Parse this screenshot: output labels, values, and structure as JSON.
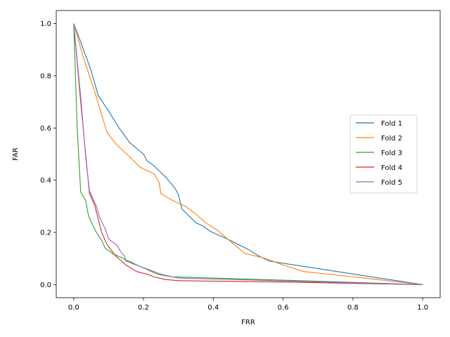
{
  "chart_data": {
    "type": "line",
    "xlabel": "FRR",
    "ylabel": "FAR",
    "xlim": [
      -0.05,
      1.05
    ],
    "ylim": [
      -0.05,
      1.05
    ],
    "xticks": [
      0.0,
      0.2,
      0.4,
      0.6,
      0.8,
      1.0
    ],
    "yticks": [
      0.0,
      0.2,
      0.4,
      0.6,
      0.8,
      1.0
    ],
    "xtick_labels": [
      "0.0",
      "0.2",
      "0.4",
      "0.6",
      "0.8",
      "1.0"
    ],
    "ytick_labels": [
      "0.0",
      "0.2",
      "0.4",
      "0.6",
      "0.8",
      "1.0"
    ],
    "grid": false,
    "legend_position": "center-right",
    "series": [
      {
        "name": "Fold 1",
        "color": "#1f77b4",
        "points": [
          [
            0.0,
            1.0
          ],
          [
            0.02,
            0.93
          ],
          [
            0.05,
            0.82
          ],
          [
            0.07,
            0.725
          ],
          [
            0.1,
            0.665
          ],
          [
            0.13,
            0.6
          ],
          [
            0.16,
            0.545
          ],
          [
            0.2,
            0.5
          ],
          [
            0.21,
            0.475
          ],
          [
            0.23,
            0.455
          ],
          [
            0.265,
            0.41
          ],
          [
            0.29,
            0.37
          ],
          [
            0.3,
            0.345
          ],
          [
            0.31,
            0.29
          ],
          [
            0.35,
            0.237
          ],
          [
            0.37,
            0.225
          ],
          [
            0.39,
            0.205
          ],
          [
            0.44,
            0.175
          ],
          [
            0.5,
            0.135
          ],
          [
            0.53,
            0.11
          ],
          [
            0.56,
            0.09
          ],
          [
            1.0,
            0.0
          ]
        ]
      },
      {
        "name": "Fold 2",
        "color": "#ff7f0e",
        "points": [
          [
            0.0,
            1.0
          ],
          [
            0.03,
            0.86
          ],
          [
            0.06,
            0.74
          ],
          [
            0.095,
            0.585
          ],
          [
            0.12,
            0.54
          ],
          [
            0.16,
            0.49
          ],
          [
            0.19,
            0.45
          ],
          [
            0.23,
            0.425
          ],
          [
            0.245,
            0.39
          ],
          [
            0.25,
            0.348
          ],
          [
            0.28,
            0.325
          ],
          [
            0.32,
            0.3
          ],
          [
            0.35,
            0.27
          ],
          [
            0.38,
            0.235
          ],
          [
            0.41,
            0.21
          ],
          [
            0.45,
            0.165
          ],
          [
            0.49,
            0.12
          ],
          [
            0.55,
            0.1
          ],
          [
            0.6,
            0.075
          ],
          [
            0.66,
            0.05
          ],
          [
            0.8,
            0.03
          ],
          [
            1.0,
            0.0
          ]
        ]
      },
      {
        "name": "Fold 3",
        "color": "#2ca02c",
        "points": [
          [
            0.0,
            1.0
          ],
          [
            0.01,
            0.6
          ],
          [
            0.02,
            0.355
          ],
          [
            0.035,
            0.32
          ],
          [
            0.04,
            0.28
          ],
          [
            0.045,
            0.255
          ],
          [
            0.065,
            0.2
          ],
          [
            0.08,
            0.17
          ],
          [
            0.09,
            0.14
          ],
          [
            0.11,
            0.12
          ],
          [
            0.15,
            0.095
          ],
          [
            0.19,
            0.07
          ],
          [
            0.24,
            0.04
          ],
          [
            0.28,
            0.03
          ],
          [
            0.6,
            0.017
          ],
          [
            1.0,
            0.0
          ]
        ]
      },
      {
        "name": "Fold 4",
        "color": "#d62728",
        "points": [
          [
            0.0,
            1.0
          ],
          [
            0.02,
            0.7
          ],
          [
            0.04,
            0.42
          ],
          [
            0.045,
            0.35
          ],
          [
            0.06,
            0.305
          ],
          [
            0.08,
            0.2
          ],
          [
            0.095,
            0.155
          ],
          [
            0.12,
            0.11
          ],
          [
            0.15,
            0.075
          ],
          [
            0.18,
            0.05
          ],
          [
            0.21,
            0.04
          ],
          [
            0.23,
            0.03
          ],
          [
            0.26,
            0.02
          ],
          [
            0.3,
            0.015
          ],
          [
            0.6,
            0.01
          ],
          [
            1.0,
            0.0
          ]
        ]
      },
      {
        "name": "Fold 5",
        "color": "#9467bd",
        "points": [
          [
            0.0,
            1.0
          ],
          [
            0.02,
            0.72
          ],
          [
            0.035,
            0.48
          ],
          [
            0.045,
            0.36
          ],
          [
            0.065,
            0.3
          ],
          [
            0.075,
            0.255
          ],
          [
            0.09,
            0.215
          ],
          [
            0.1,
            0.175
          ],
          [
            0.125,
            0.15
          ],
          [
            0.135,
            0.125
          ],
          [
            0.145,
            0.11
          ],
          [
            0.15,
            0.09
          ],
          [
            0.19,
            0.07
          ],
          [
            0.25,
            0.04
          ],
          [
            0.3,
            0.025
          ],
          [
            1.0,
            0.0
          ]
        ]
      }
    ]
  }
}
